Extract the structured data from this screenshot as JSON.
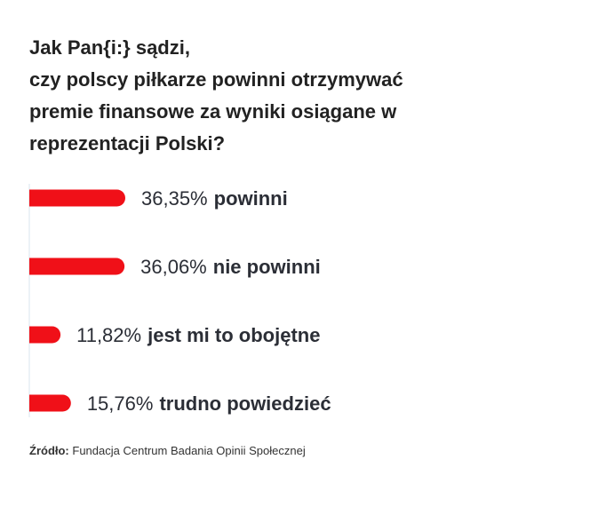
{
  "title_lines": [
    "Jak Pan{i:} sądzi,",
    "czy polscy piłkarze powinni otrzymywać",
    "premie finansowe za wyniki osiągane w",
    "reprezentacji Polski?"
  ],
  "source": {
    "label": "Źródło:",
    "text": "Fundacja Centrum Badania Opinii Społecznej"
  },
  "colors": {
    "bar": "#f01018",
    "axis": "#d8e6ef",
    "text": "#2b2e36"
  },
  "chart_data": {
    "type": "bar",
    "orientation": "horizontal",
    "categories": [
      "powinni",
      "nie powinni",
      "jest mi to obojętne",
      "trudno powiedzieć"
    ],
    "values": [
      36.35,
      36.06,
      11.82,
      15.76
    ],
    "value_labels": [
      "36,35%",
      "36,06%",
      "11,82%",
      "15,76%"
    ],
    "unit": "%",
    "xlim": [
      0,
      36.35
    ],
    "grid": false,
    "legend": "none"
  }
}
